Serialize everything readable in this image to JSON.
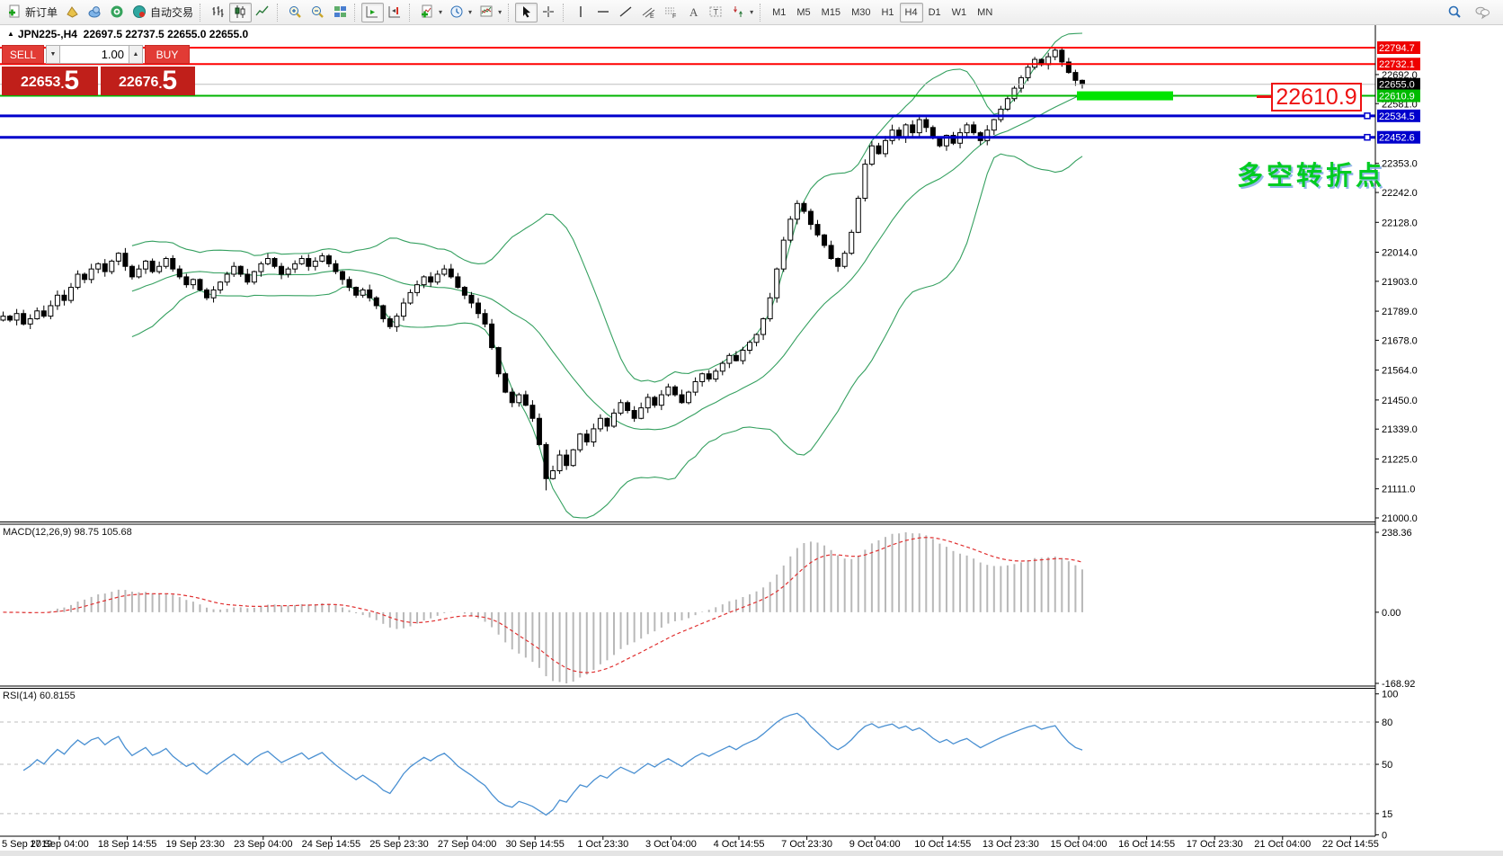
{
  "toolbar": {
    "groups": [
      {
        "buttons": [
          {
            "name": "new-order-button",
            "icon": "new-order-icon",
            "label": "新订单"
          },
          {
            "name": "new-chart-button",
            "icon": "new-chart-icon"
          },
          {
            "name": "profiles-button",
            "icon": "profiles-icon"
          },
          {
            "name": "community-button",
            "icon": "community-icon"
          },
          {
            "name": "autotrading-button",
            "icon": "autotrading-icon",
            "label": "自动交易"
          }
        ]
      },
      {
        "buttons": [
          {
            "name": "bar-chart-button",
            "icon": "bar-chart-icon"
          },
          {
            "name": "candlestick-button",
            "icon": "candlestick-icon",
            "pressed": true
          },
          {
            "name": "line-chart-button",
            "icon": "line-chart-icon"
          }
        ]
      },
      {
        "buttons": [
          {
            "name": "zoom-in-button",
            "icon": "zoom-in-icon"
          },
          {
            "name": "zoom-out-button",
            "icon": "zoom-out-icon"
          },
          {
            "name": "tile-windows-button",
            "icon": "tile-windows-icon"
          }
        ]
      },
      {
        "buttons": [
          {
            "name": "auto-scroll-button",
            "icon": "auto-scroll-icon",
            "pressed": true
          },
          {
            "name": "chart-shift-button",
            "icon": "chart-shift-icon"
          }
        ]
      },
      {
        "buttons": [
          {
            "name": "indicators-button",
            "icon": "indicators-icon",
            "caret": true
          },
          {
            "name": "periods-button",
            "icon": "clock-icon",
            "caret": true
          },
          {
            "name": "templates-button",
            "icon": "templates-icon",
            "caret": true
          }
        ]
      },
      {
        "buttons": [
          {
            "name": "cursor-button",
            "icon": "cursor-icon",
            "pressed": true
          },
          {
            "name": "crosshair-button",
            "icon": "crosshair-icon"
          }
        ]
      },
      {
        "buttons": [
          {
            "name": "vertical-line-button",
            "icon": "vertical-line-icon"
          },
          {
            "name": "horizontal-line-button",
            "icon": "horizontal-line-icon"
          },
          {
            "name": "trendline-button",
            "icon": "trendline-icon"
          },
          {
            "name": "equidistant-channel-button",
            "icon": "channel-icon"
          },
          {
            "name": "fibonacci-button",
            "icon": "fibonacci-icon"
          },
          {
            "name": "text-button",
            "icon": "text-a-icon"
          },
          {
            "name": "text-label-button",
            "icon": "text-t-icon"
          },
          {
            "name": "arrows-button",
            "icon": "arrows-icon",
            "caret": true
          }
        ]
      }
    ],
    "timeframes": [
      {
        "label": "M1"
      },
      {
        "label": "M5"
      },
      {
        "label": "M15"
      },
      {
        "label": "M30"
      },
      {
        "label": "H1"
      },
      {
        "label": "H4",
        "pressed": true
      },
      {
        "label": "D1"
      },
      {
        "label": "W1"
      },
      {
        "label": "MN"
      }
    ],
    "right_icons": [
      {
        "name": "search-button",
        "icon": "search-icon"
      },
      {
        "name": "chat-button",
        "icon": "chat-icon"
      }
    ]
  },
  "chart_title": {
    "collapse_marker": "▲",
    "symbol_period": "JPN225-,H4",
    "ohlc": "22697.5 22737.5 22655.0 22655.0"
  },
  "one_click": {
    "sell_label": "SELL",
    "buy_label": "BUY",
    "volume": "1.00",
    "decimal_sep": ".",
    "sell_price_main": "22653",
    "sell_price_pip": "5",
    "buy_price_main": "22676",
    "buy_price_pip": "5",
    "spin_down": "▼",
    "spin_up": "▲"
  },
  "annotations": {
    "level_label": "22610.9",
    "turning_point": "多空转折点"
  },
  "chart_data": {
    "type": "candlestick",
    "symbol": "JPN225-",
    "timeframe": "H4",
    "display_ohlc": {
      "open": 22697.5,
      "high": 22737.5,
      "low": 22655.0,
      "close": 22655.0
    },
    "ylim": [
      21000,
      22794.7
    ],
    "closes": [
      21770,
      21755,
      21780,
      21740,
      21760,
      21790,
      21770,
      21810,
      21850,
      21830,
      21880,
      21930,
      21910,
      21950,
      21970,
      21940,
      21980,
      22010,
      21960,
      21920,
      21950,
      21980,
      21940,
      21960,
      21990,
      21950,
      21920,
      21890,
      21910,
      21870,
      21840,
      21870,
      21900,
      21930,
      21960,
      21930,
      21900,
      21940,
      21970,
      21990,
      21960,
      21930,
      21950,
      21970,
      21990,
      21960,
      21980,
      22000,
      21970,
      21940,
      21910,
      21880,
      21850,
      21870,
      21840,
      21810,
      21760,
      21730,
      21770,
      21820,
      21860,
      21890,
      21920,
      21900,
      21930,
      21950,
      21920,
      21880,
      21850,
      21820,
      21780,
      21740,
      21650,
      21550,
      21480,
      21440,
      21470,
      21430,
      21380,
      21280,
      21150,
      21180,
      21240,
      21200,
      21260,
      21320,
      21290,
      21340,
      21380,
      21350,
      21400,
      21440,
      21410,
      21380,
      21420,
      21460,
      21430,
      21470,
      21500,
      21470,
      21440,
      21480,
      21520,
      21550,
      21530,
      21560,
      21590,
      21620,
      21600,
      21640,
      21670,
      21700,
      21760,
      21840,
      21950,
      22060,
      22140,
      22200,
      22170,
      22120,
      22080,
      22040,
      21990,
      21960,
      22010,
      22090,
      22220,
      22350,
      22420,
      22390,
      22440,
      22480,
      22450,
      22500,
      22470,
      22520,
      22490,
      22450,
      22420,
      22460,
      22430,
      22470,
      22500,
      22470,
      22440,
      22480,
      22520,
      22560,
      22600,
      22640,
      22680,
      22720,
      22750,
      22730,
      22760,
      22785,
      22740,
      22700,
      22670,
      22655
    ],
    "bollinger": {
      "period": 20,
      "deviation": 2,
      "color": "#35a060"
    },
    "hlines": [
      {
        "price": 22794.7,
        "label": "22794.7",
        "color": "#ff0000",
        "width": 2,
        "badge": "#ee0000"
      },
      {
        "price": 22732.1,
        "label": "22732.1",
        "color": "#ff0000",
        "width": 2,
        "badge": "#ee0000"
      },
      {
        "price": 22655.0,
        "label": "22655.0",
        "color": "#bdbdbd",
        "width": 1,
        "badge": "#000000"
      },
      {
        "price": 22610.9,
        "label": "22610.9",
        "color": "#00b400",
        "width": 2,
        "badge": "#00bb00"
      },
      {
        "price": 22534.5,
        "label": "22534.5",
        "color": "#0000cc",
        "width": 3,
        "badge": "#0000cc",
        "handle": true
      },
      {
        "price": 22452.6,
        "label": "22452.6",
        "color": "#0000cc",
        "width": 3,
        "badge": "#0000cc",
        "handle": true
      }
    ],
    "highlight_bar": {
      "price": 22610.9,
      "x": 1198,
      "width": 107,
      "height": 10,
      "color": "#00e400"
    },
    "y_ticks": [
      "22692.0",
      "22581.0",
      "22353.0",
      "22242.0",
      "22128.0",
      "22014.0",
      "21903.0",
      "21789.0",
      "21678.0",
      "21564.0",
      "21450.0",
      "21339.0",
      "21225.0",
      "21111.0",
      "21000.0"
    ],
    "x_labels": [
      "5 Sep 2019",
      "17 Sep 04:00",
      "18 Sep 14:55",
      "19 Sep 23:30",
      "23 Sep 04:00",
      "24 Sep 14:55",
      "25 Sep 23:30",
      "27 Sep 04:00",
      "30 Sep 14:55",
      "1 Oct 23:30",
      "3 Oct 04:00",
      "4 Oct 14:55",
      "7 Oct 23:30",
      "9 Oct 04:00",
      "10 Oct 14:55",
      "13 Oct 23:30",
      "15 Oct 04:00",
      "16 Oct 14:55",
      "17 Oct 23:30",
      "21 Oct 04:00",
      "22 Oct 14:55"
    ],
    "macd": {
      "title": "MACD(12,26,9)",
      "values": "98.75 105.68",
      "params": {
        "fast": 12,
        "slow": 26,
        "signal": 9
      },
      "scale_labels": [
        "238.36",
        "0.00",
        "-168.92"
      ],
      "histogram_color": "#b8b8b8",
      "signal_color": "#e03030"
    },
    "rsi": {
      "title": "RSI(14)",
      "value": "60.8155",
      "period": 14,
      "scale_labels": [
        "100",
        "80",
        "50",
        "15",
        "0"
      ],
      "levels": [
        80,
        50,
        15
      ],
      "line_color": "#4a90d2"
    }
  }
}
